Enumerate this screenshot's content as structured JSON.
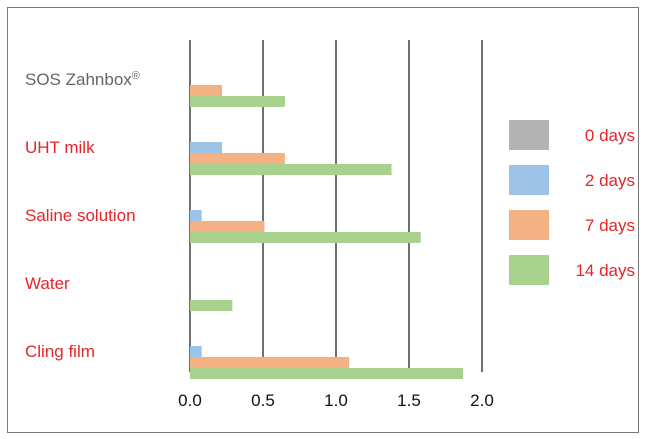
{
  "chart_data": {
    "type": "bar",
    "orientation": "horizontal",
    "title": "",
    "xlabel": "",
    "ylabel": "",
    "categories": [
      {
        "label": "SOS Zahnbox",
        "superscript": "®",
        "color": "#666666"
      },
      {
        "label": "UHT milk",
        "superscript": "",
        "color": "#e3262a"
      },
      {
        "label": "Saline solution",
        "superscript": "",
        "color": "#e3262a"
      },
      {
        "label": "Water",
        "superscript": "",
        "color": "#e3262a"
      },
      {
        "label": "Cling film",
        "superscript": "",
        "color": "#e3262a"
      }
    ],
    "series": [
      {
        "name": "0 days",
        "color": "#b3b3b3",
        "values": [
          0,
          0,
          0,
          0,
          0
        ]
      },
      {
        "name": "2 days",
        "color": "#9dc3e6",
        "values": [
          0,
          0.22,
          0.08,
          0,
          0.08
        ]
      },
      {
        "name": "7 days",
        "color": "#f4b183",
        "values": [
          0.22,
          0.65,
          0.51,
          0,
          1.09
        ]
      },
      {
        "name": "14 days",
        "color": "#a9d18e",
        "values": [
          0.65,
          1.38,
          1.58,
          0.29,
          1.87
        ]
      }
    ],
    "xlim": [
      0,
      2.0
    ],
    "xticks": [
      "0.0",
      "0.5",
      "1.0",
      "1.5",
      "2.0"
    ],
    "grid": "vertical",
    "legend_position": "right",
    "label_color": "#e3262a"
  }
}
